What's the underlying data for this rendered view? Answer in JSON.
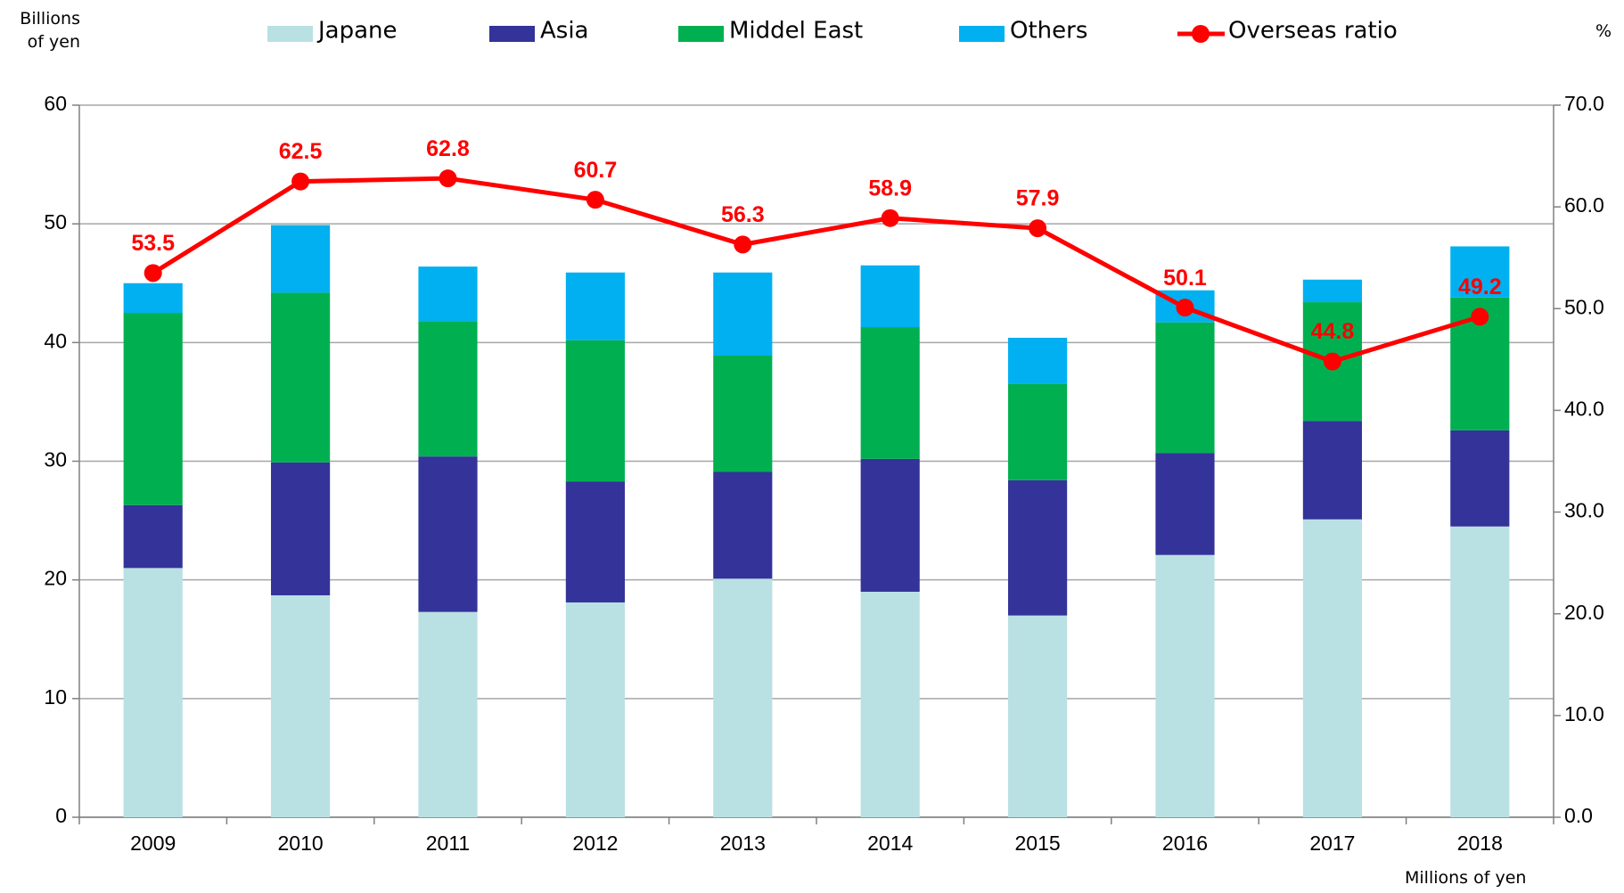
{
  "chart_data": {
    "type": "bar",
    "y_label": "Billions of yen",
    "y2_label": "%",
    "x_label": "Millions of  yen",
    "categories": [
      "2009",
      "2010",
      "2011",
      "2012",
      "2013",
      "2014",
      "2015",
      "2016",
      "2017",
      "2018"
    ],
    "stacked": true,
    "series": [
      {
        "name": "Japane",
        "color": "#b9e0e3",
        "values": [
          21.0,
          18.7,
          17.3,
          18.1,
          20.1,
          19.0,
          17.0,
          22.1,
          25.1,
          24.5
        ]
      },
      {
        "name": "Asia",
        "color": "#333399",
        "values": [
          5.3,
          11.2,
          13.1,
          10.2,
          9.0,
          11.2,
          11.4,
          8.6,
          8.3,
          8.1
        ]
      },
      {
        "name": "Middel East",
        "color": "#00b050",
        "values": [
          16.2,
          14.3,
          11.4,
          11.9,
          9.8,
          11.1,
          8.1,
          11.0,
          10.0,
          11.2
        ]
      },
      {
        "name": "Others",
        "color": "#00b0f0",
        "values": [
          2.5,
          5.7,
          4.6,
          5.7,
          7.0,
          5.2,
          3.9,
          2.7,
          1.9,
          4.3
        ]
      },
      {
        "name": "Overseas ratio",
        "color": "#ff0000",
        "type": "line",
        "axis": "y2",
        "values": [
          53.5,
          62.5,
          62.8,
          60.7,
          56.3,
          58.9,
          57.9,
          50.1,
          44.8,
          49.2
        ]
      }
    ],
    "ylim": [
      0,
      60
    ],
    "yticks": [
      0,
      10,
      20,
      30,
      40,
      50,
      60
    ],
    "y2lim": [
      0,
      70
    ],
    "y2ticks": [
      {
        "value": 0,
        "label": "0.0"
      },
      {
        "value": 10,
        "label": "10.0"
      },
      {
        "value": 20,
        "label": "20.0"
      },
      {
        "value": 30,
        "label": "30.0"
      },
      {
        "value": 40,
        "label": "40.0"
      },
      {
        "value": 50,
        "label": "50.0"
      },
      {
        "value": 60,
        "label": "60.0"
      },
      {
        "value": 70,
        "label": "70.0"
      }
    ],
    "grid": true,
    "legend": "top"
  }
}
